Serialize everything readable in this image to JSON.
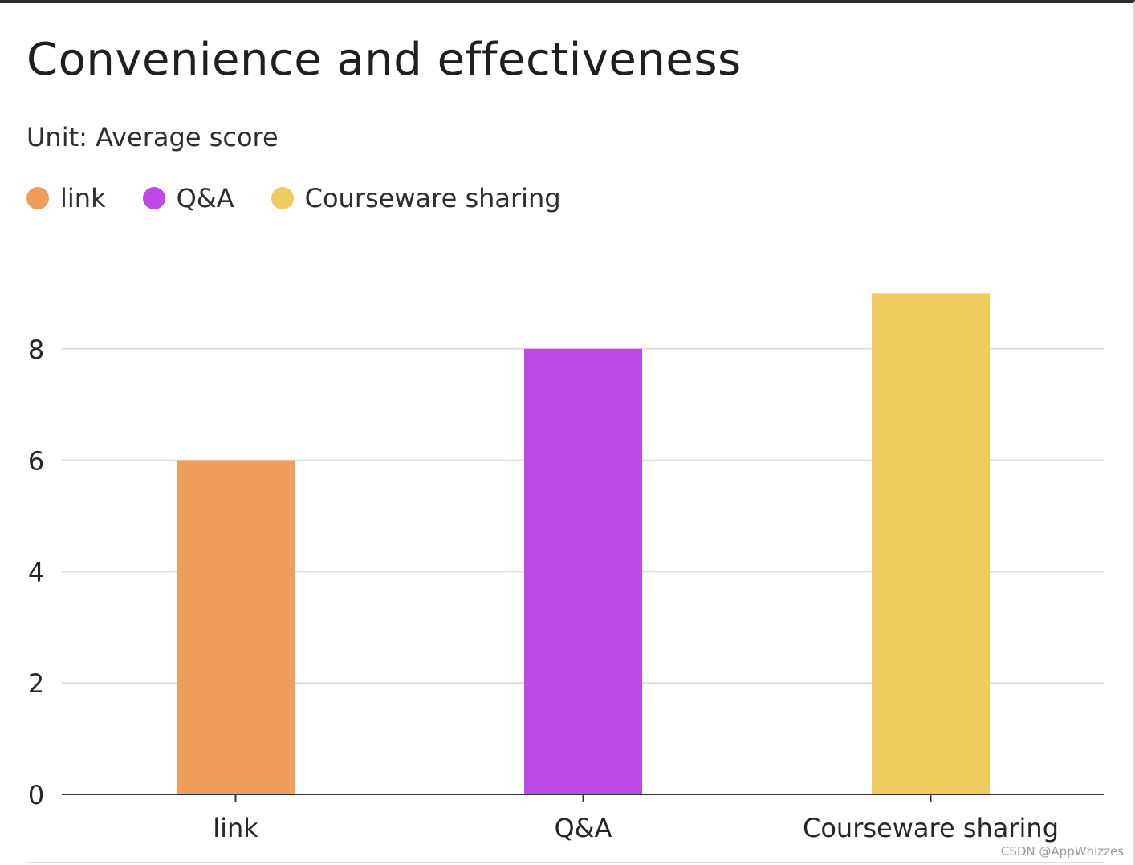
{
  "chart_data": {
    "type": "bar",
    "title": "Convenience and effectiveness",
    "subtitle": "Unit: Average score",
    "categories": [
      "link",
      "Q&A",
      "Courseware sharing"
    ],
    "values": [
      6,
      8,
      9
    ],
    "colors": [
      "#f09c5a",
      "#bb4ae8",
      "#eecd5e"
    ],
    "legend": [
      {
        "label": "link",
        "color": "#f09c5a"
      },
      {
        "label": "Q&A",
        "color": "#bb4ae8"
      },
      {
        "label": "Courseware sharing",
        "color": "#eecd5e"
      }
    ],
    "legend_position": "top-left",
    "yticks": [
      "0",
      "2",
      "4",
      "6",
      "8"
    ],
    "ylim": [
      0,
      9
    ],
    "grid": true,
    "xlabel": "",
    "ylabel": ""
  },
  "footer": {
    "credit": "CSDN @AppWhizzes"
  }
}
